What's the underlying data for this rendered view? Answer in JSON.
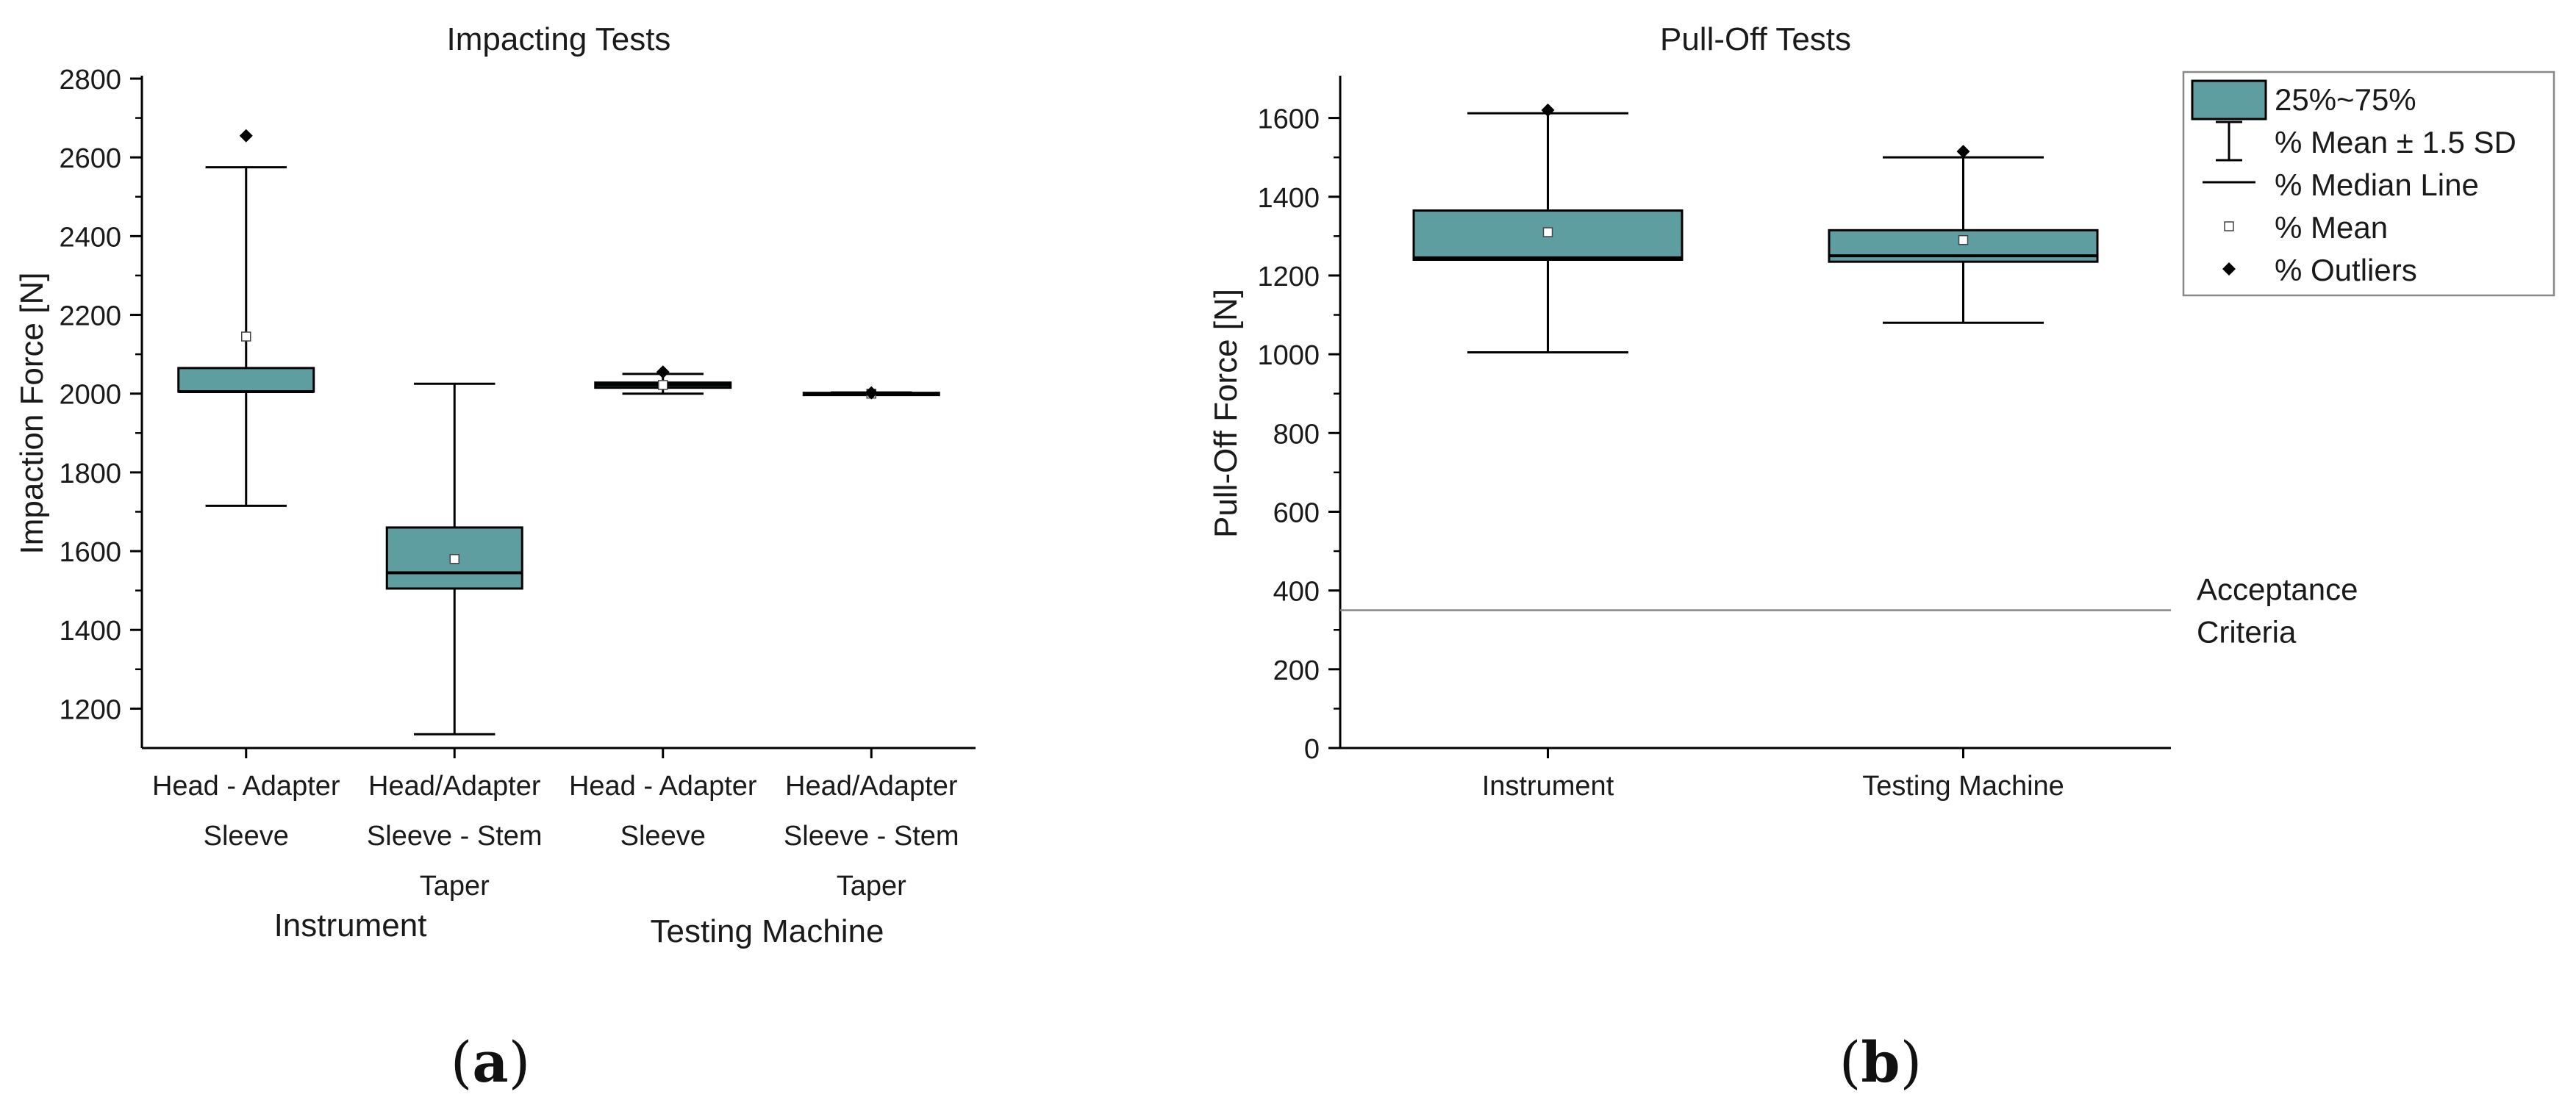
{
  "chart_data": [
    {
      "type": "box",
      "panel_label": "a",
      "title": "Impacting Tests",
      "ylabel": "Impaction Force [N]",
      "xlabel": "",
      "ylim": [
        1100,
        2800
      ],
      "yticks": [
        1200,
        1400,
        1600,
        1800,
        2000,
        2200,
        2400,
        2600,
        2800
      ],
      "grid": false,
      "box_color": "#5F9EA0",
      "categories": [
        {
          "lines": [
            "Head - Adapter",
            "Sleeve"
          ]
        },
        {
          "lines": [
            "Head/Adapter",
            "Sleeve - Stem",
            "Taper"
          ]
        },
        {
          "lines": [
            "Head - Adapter",
            "Sleeve"
          ]
        },
        {
          "lines": [
            "Head/Adapter",
            "Sleeve - Stem",
            "Taper"
          ]
        }
      ],
      "groups": [
        {
          "label": "Instrument",
          "categories": [
            0,
            1
          ]
        },
        {
          "label": "Testing Machine",
          "categories": [
            2,
            3
          ]
        }
      ],
      "boxes": [
        {
          "q1": 2005,
          "median": 2005,
          "q3": 2065,
          "mean": 2145,
          "whisker_low": 1715,
          "whisker_high": 2575,
          "outliers": [
            2655
          ]
        },
        {
          "q1": 1505,
          "median": 1545,
          "q3": 1660,
          "mean": 1580,
          "whisker_low": 1135,
          "whisker_high": 2025,
          "outliers": []
        },
        {
          "q1": 2015,
          "median": 2022,
          "q3": 2028,
          "mean": 2022,
          "whisker_low": 2000,
          "whisker_high": 2050,
          "outliers": [
            2055
          ]
        },
        {
          "q1": 1998,
          "median": 2000,
          "q3": 2002,
          "mean": 2000,
          "whisker_low": 1998,
          "whisker_high": 2003,
          "outliers": [
            2002
          ]
        }
      ]
    },
    {
      "type": "box",
      "panel_label": "b",
      "title": "Pull-Off Tests",
      "ylabel": "Pull-Off Force [N]",
      "xlabel": "",
      "ylim": [
        0,
        1700
      ],
      "yticks": [
        0,
        200,
        400,
        600,
        800,
        1000,
        1200,
        1400,
        1600
      ],
      "grid": false,
      "box_color": "#5F9EA0",
      "categories": [
        {
          "lines": [
            "Instrument"
          ]
        },
        {
          "lines": [
            "Testing Machine"
          ]
        }
      ],
      "boxes": [
        {
          "q1": 1240,
          "median": 1245,
          "q3": 1365,
          "mean": 1310,
          "whisker_low": 1005,
          "whisker_high": 1612,
          "outliers": [
            1620
          ]
        },
        {
          "q1": 1235,
          "median": 1250,
          "q3": 1315,
          "mean": 1290,
          "whisker_low": 1080,
          "whisker_high": 1500,
          "outliers": [
            1515
          ]
        }
      ],
      "reference_line": {
        "value": 350,
        "label_lines": [
          "Acceptance",
          "Criteria"
        ]
      },
      "legend": {
        "placement": "top-right",
        "entries": [
          {
            "kind": "box",
            "label": "25%~75%"
          },
          {
            "kind": "whisker",
            "label": "% Mean ± 1.5 SD"
          },
          {
            "kind": "median",
            "label": "% Median Line"
          },
          {
            "kind": "mean",
            "label": "% Mean"
          },
          {
            "kind": "outlier",
            "label": "% Outliers"
          }
        ]
      }
    }
  ]
}
